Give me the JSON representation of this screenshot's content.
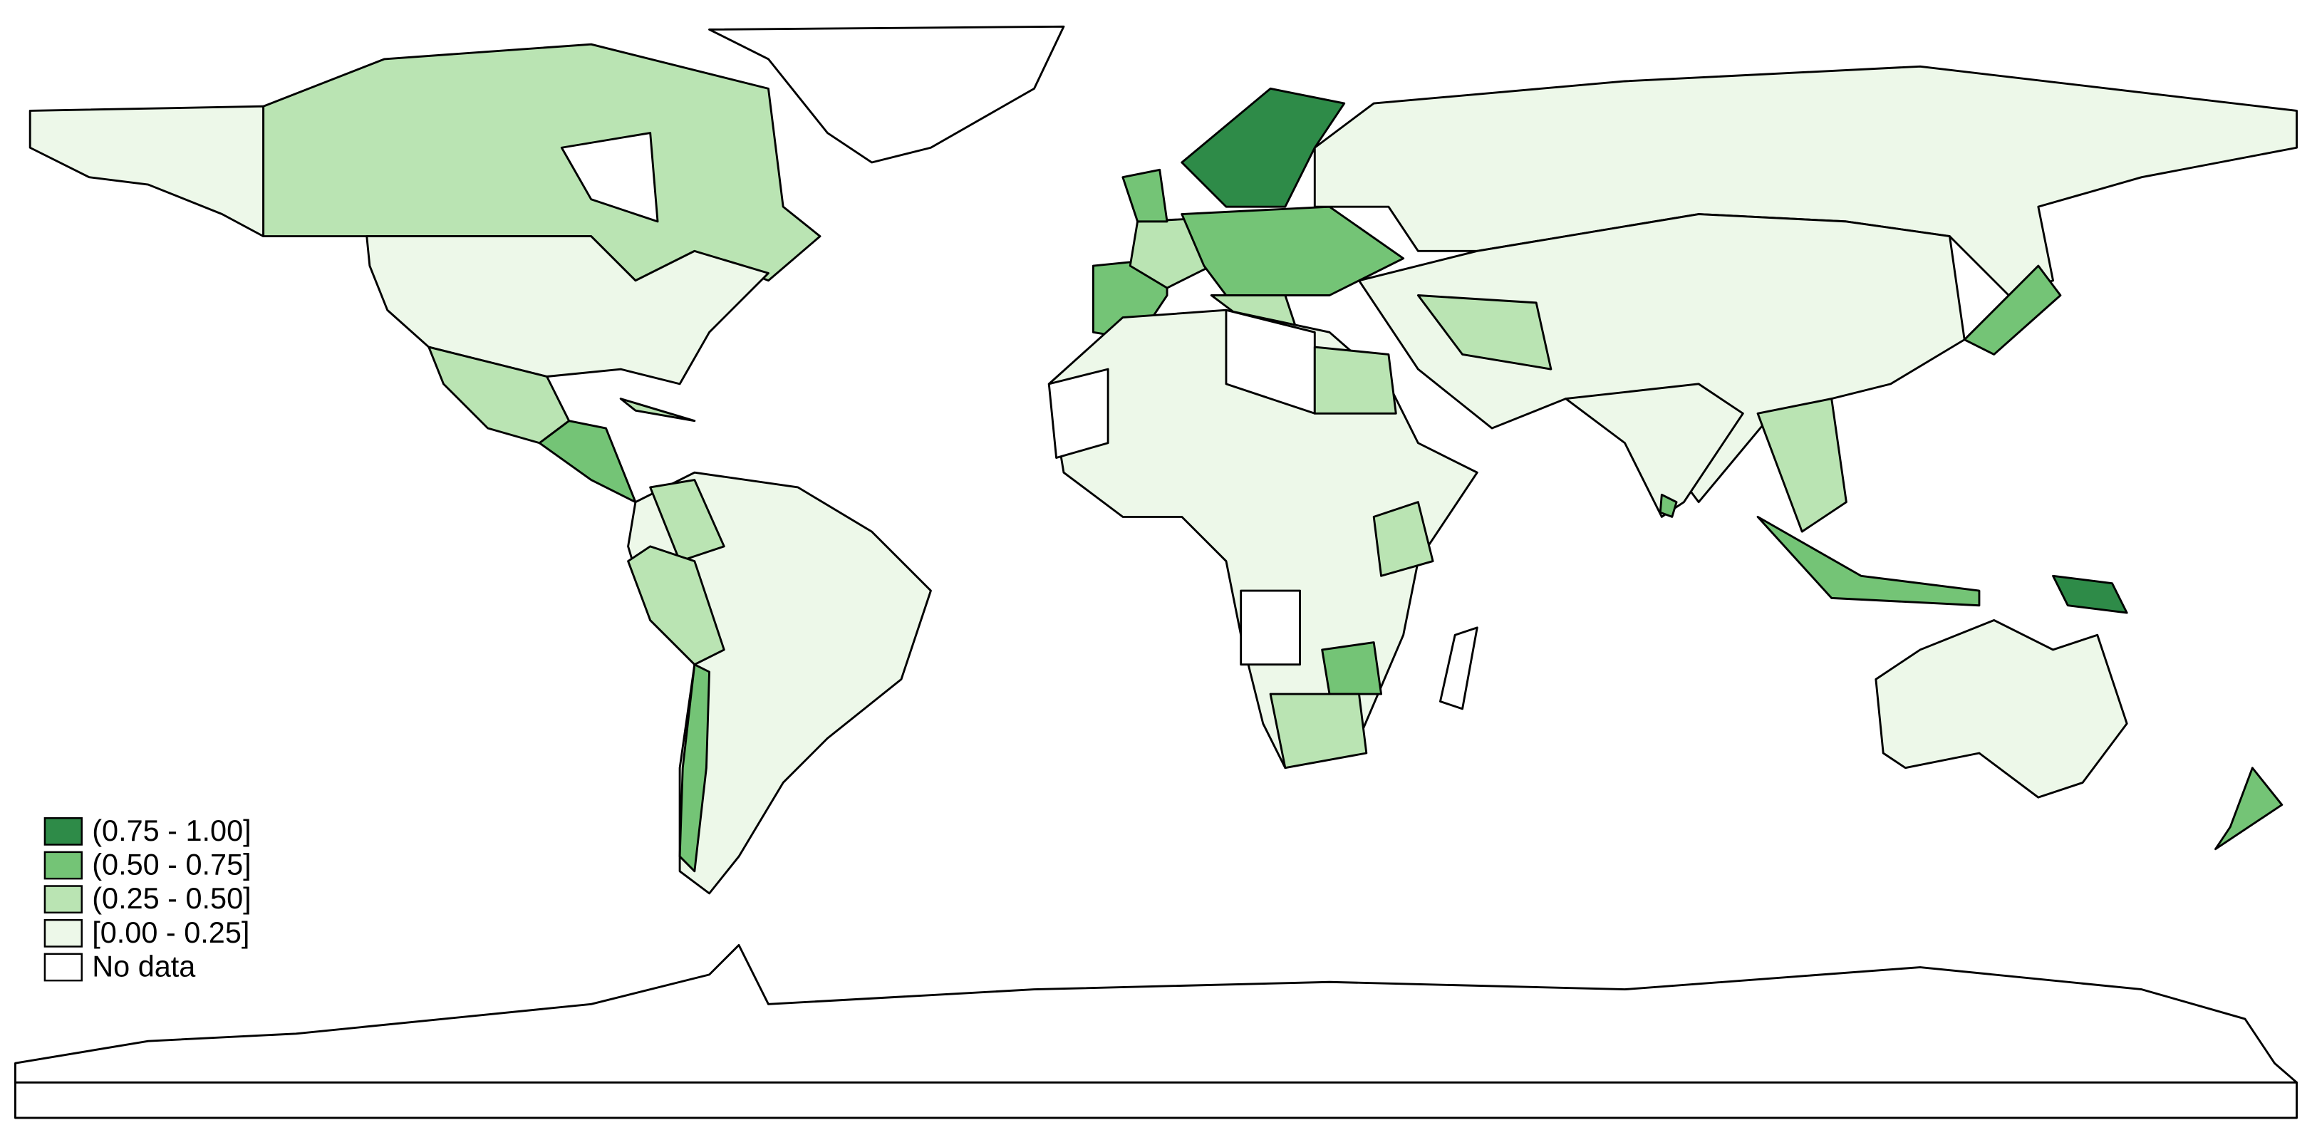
{
  "legend": {
    "items": [
      {
        "label": "(0.75 - 1.00]",
        "color": "#2e8b48"
      },
      {
        "label": "(0.50 - 0.75]",
        "color": "#74c476"
      },
      {
        "label": "(0.25 - 0.50]",
        "color": "#bae4b3"
      },
      {
        "label": "[0.00 - 0.25]",
        "color": "#edf8e9"
      },
      {
        "label": "No data",
        "color": "#ffffff"
      }
    ]
  }
}
